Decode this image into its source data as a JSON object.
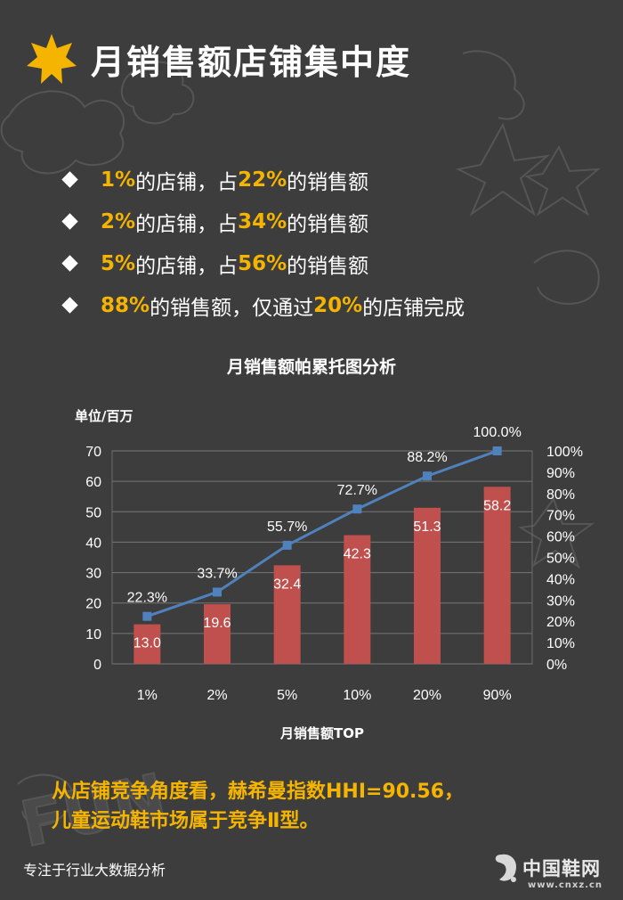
{
  "header": {
    "title": "月销售额店铺集中度"
  },
  "bullets": [
    {
      "p1": "1%",
      "t1": "的店铺，占",
      "p2": "22%",
      "t2": "的销售额"
    },
    {
      "p1": "2%",
      "t1": "的店铺，占",
      "p2": "34%",
      "t2": "的销售额"
    },
    {
      "p1": "5%",
      "t1": "的店铺，占",
      "p2": "56%",
      "t2": "的销售额"
    },
    {
      "p1": "88%",
      "t1": "的销售额，仅通过",
      "p2": "20%",
      "t2": "的店铺完成"
    }
  ],
  "chart_data": {
    "type": "bar",
    "title": "月销售额帕累托图分析",
    "unit_label": "单位/百万",
    "xlabel": "月销售额TOP",
    "categories": [
      "1%",
      "2%",
      "5%",
      "10%",
      "20%",
      "90%"
    ],
    "series": [
      {
        "type": "bar",
        "axis": "left",
        "values": [
          13.0,
          19.6,
          32.4,
          42.3,
          51.3,
          58.2
        ],
        "labels": [
          "13.0",
          "19.6",
          "32.4",
          "42.3",
          "51.3",
          "58.2"
        ]
      },
      {
        "type": "line",
        "axis": "right",
        "values": [
          22.3,
          33.7,
          55.7,
          72.7,
          88.2,
          100.0
        ],
        "labels": [
          "22.3%",
          "33.7%",
          "55.7%",
          "72.7%",
          "88.2%",
          "100.0%"
        ]
      }
    ],
    "ylim_left": [
      0,
      70
    ],
    "yticks_left": [
      "0",
      "10",
      "20",
      "30",
      "40",
      "50",
      "60",
      "70"
    ],
    "ylim_right": [
      0,
      100
    ],
    "yticks_right": [
      "0%",
      "10%",
      "20%",
      "30%",
      "40%",
      "50%",
      "60%",
      "70%",
      "80%",
      "90%",
      "100%"
    ],
    "grid": true,
    "bar_color": "#c0504d",
    "line_color": "#4f81bd"
  },
  "conclusion": {
    "line1": "从店铺竞争角度看，赫希曼指数HHI=90.56，",
    "line2": "儿童运动鞋市场属于竞争Ⅱ型。"
  },
  "footer": {
    "left_text": "专注于行业大数据分析",
    "logo_text": "中国鞋网",
    "logo_url": "www.cnxz.cn"
  },
  "colors": {
    "background": "#3d3d3d",
    "highlight": "#f5b400",
    "title_star": "#f5b400"
  }
}
